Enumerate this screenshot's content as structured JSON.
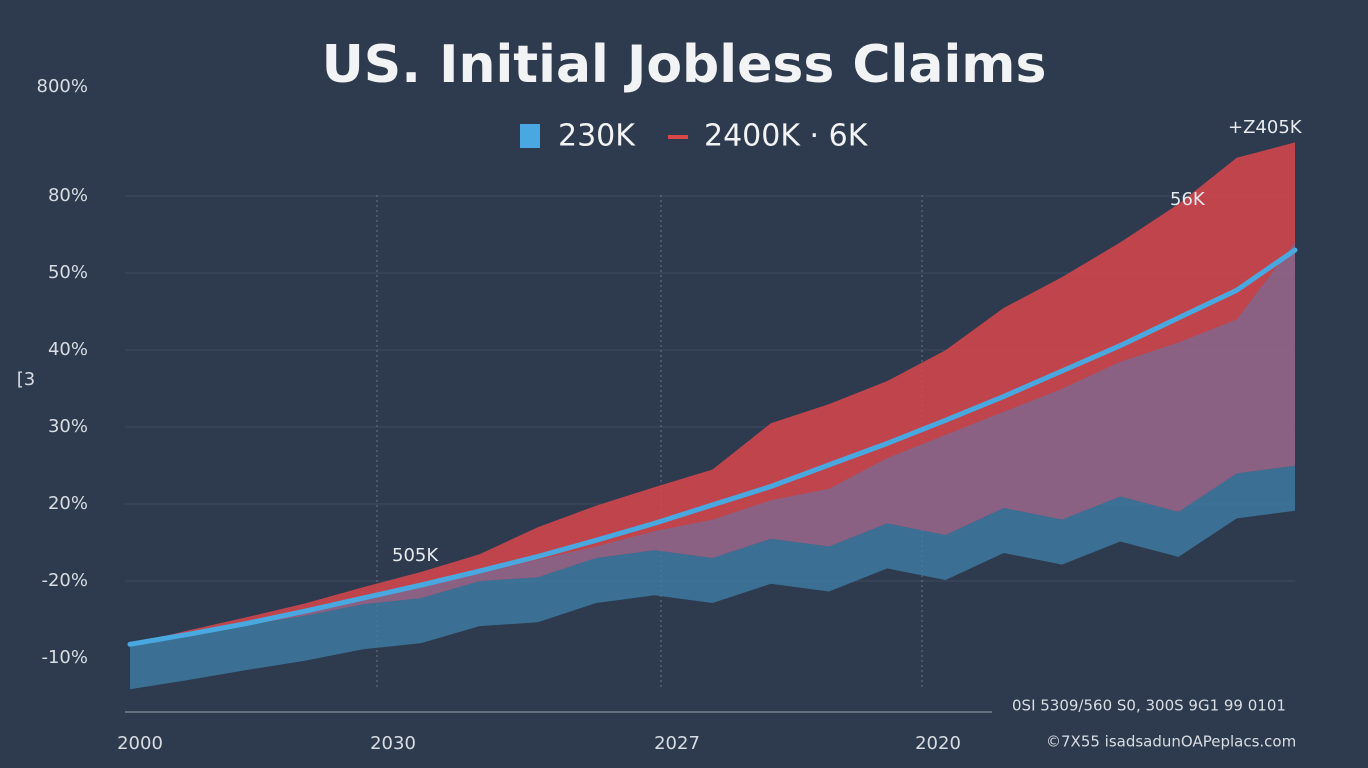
{
  "chart_data": {
    "type": "line",
    "title": "US. Initial Jobless Claims",
    "y_axis_label": "[3",
    "legend": [
      "230K",
      "2400K · 6K"
    ],
    "y_axis_labels": [
      "-10%",
      "-20%",
      "20%",
      "30%",
      "40%",
      "50%",
      "80%",
      "800%"
    ],
    "x_axis_labels": [
      "2000",
      "2030",
      "2027",
      "2020"
    ],
    "annotations": [
      "505K",
      "56K",
      "+Z405K"
    ],
    "footer": [
      "0SI 5309/560   S0, 300S    9G1  99 0101",
      "©7X55 isadsadunOAPeplacs.com"
    ],
    "ylim": [
      -0.7,
      7.9
    ],
    "xlim": [
      0,
      20
    ],
    "x": [
      0,
      1,
      2,
      3,
      4,
      5,
      6,
      7,
      8,
      9,
      10,
      11,
      12,
      13,
      14,
      15,
      16,
      17,
      18,
      19,
      20
    ],
    "series": [
      {
        "name": "230K",
        "color": "#4aa8e0",
        "values": [
          0.18,
          0.31,
          0.45,
          0.61,
          0.78,
          0.95,
          1.13,
          1.32,
          1.53,
          1.75,
          1.99,
          2.23,
          2.51,
          2.79,
          3.09,
          3.4,
          3.73,
          4.06,
          4.42,
          4.78,
          5.3
        ]
      },
      {
        "name": "2400K · 6K",
        "color": "#d9474b",
        "values": [
          0.18,
          0.36,
          0.53,
          0.71,
          0.92,
          1.12,
          1.35,
          1.7,
          1.98,
          2.22,
          2.45,
          3.05,
          3.3,
          3.6,
          4.0,
          4.55,
          4.95,
          5.4,
          5.9,
          6.5,
          6.7
        ]
      },
      {
        "color": "#7a6b95",
        "values": [
          0.18,
          0.3,
          0.45,
          0.6,
          0.78,
          0.95,
          1.1,
          1.28,
          1.45,
          1.65,
          1.8,
          2.05,
          2.2,
          2.6,
          2.9,
          3.2,
          3.5,
          3.85,
          4.1,
          4.4,
          5.4
        ]
      },
      {
        "color": "#3f7ea6",
        "values": [
          0.18,
          0.3,
          0.43,
          0.55,
          0.7,
          0.78,
          1.0,
          1.05,
          1.3,
          1.4,
          1.3,
          1.55,
          1.45,
          1.75,
          1.6,
          1.95,
          1.8,
          2.1,
          1.9,
          2.4,
          2.5
        ]
      }
    ]
  }
}
